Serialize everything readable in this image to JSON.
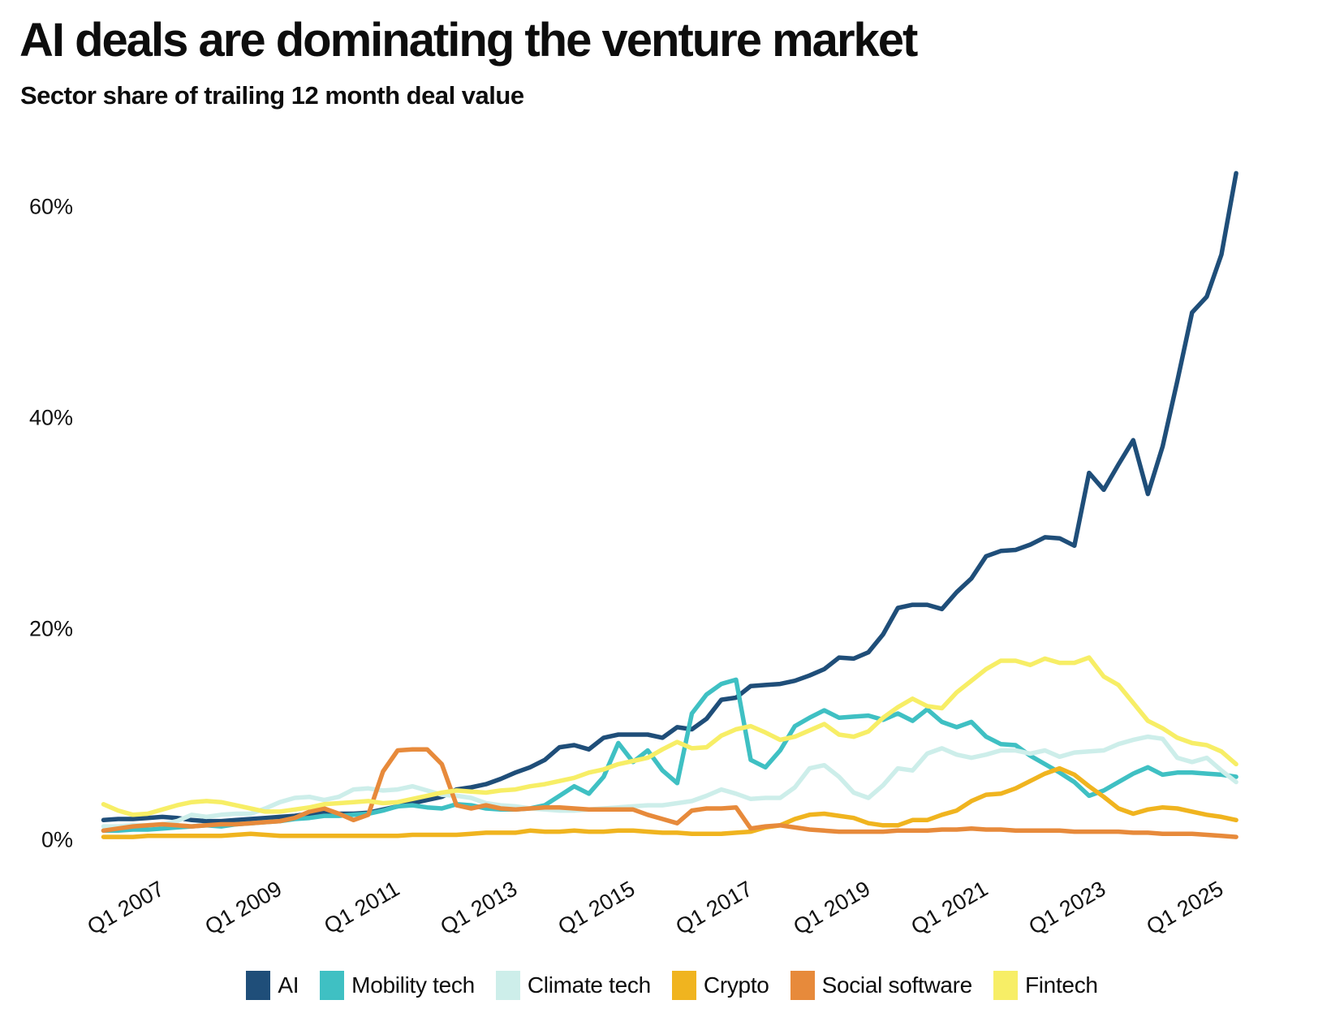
{
  "title": "AI deals are dominating the venture market",
  "subtitle": "Sector share of trailing 12 month deal value",
  "chart_data": {
    "type": "line",
    "title": "AI deals are dominating the venture market",
    "subtitle": "Sector share of trailing 12 month deal value",
    "xlabel": "",
    "ylabel": "",
    "grid": false,
    "background": "#ffffff",
    "legend_position": "bottom",
    "ylim": [
      0,
      65
    ],
    "yticks": [
      {
        "value": 0,
        "label": "0%"
      },
      {
        "value": 20,
        "label": "20%"
      },
      {
        "value": 40,
        "label": "40%"
      },
      {
        "value": 60,
        "label": "60%"
      }
    ],
    "xticks": [
      {
        "year": 2007,
        "label": "Q1 2007"
      },
      {
        "year": 2009,
        "label": "Q1 2009"
      },
      {
        "year": 2011,
        "label": "Q1 2011"
      },
      {
        "year": 2013,
        "label": "Q1 2013"
      },
      {
        "year": 2015,
        "label": "Q1 2015"
      },
      {
        "year": 2017,
        "label": "Q1 2017"
      },
      {
        "year": 2019,
        "label": "Q1 2019"
      },
      {
        "year": 2021,
        "label": "Q1 2021"
      },
      {
        "year": 2023,
        "label": "Q1 2023"
      },
      {
        "year": 2025,
        "label": "Q1 2025"
      }
    ],
    "x_axis": {
      "unit": "decimal_year_quarterly",
      "start": 2006.0,
      "step": 0.25,
      "count": 78
    },
    "series": [
      {
        "name": "AI",
        "color": "#1f4e79",
        "values": [
          1.9,
          2.0,
          2.0,
          2.1,
          2.2,
          2.1,
          1.9,
          1.8,
          1.8,
          1.9,
          2.0,
          2.1,
          2.2,
          2.3,
          2.5,
          2.6,
          2.5,
          2.5,
          2.6,
          2.9,
          3.2,
          3.5,
          3.8,
          4.1,
          4.8,
          5.0,
          5.3,
          5.8,
          6.4,
          6.9,
          7.6,
          8.8,
          9.0,
          8.6,
          9.7,
          10.0,
          10.0,
          10.0,
          9.7,
          10.7,
          10.5,
          11.5,
          13.3,
          13.5,
          14.6,
          14.7,
          14.8,
          15.1,
          15.6,
          16.2,
          17.3,
          17.2,
          17.8,
          19.5,
          22.0,
          22.3,
          22.3,
          21.9,
          23.5,
          24.8,
          26.9,
          27.4,
          27.5,
          28.0,
          28.7,
          28.6,
          27.9,
          34.8,
          33.2,
          35.6,
          37.9,
          32.8,
          37.3,
          43.5,
          50.0,
          51.5,
          55.5,
          63.2
        ]
      },
      {
        "name": "Mobility tech",
        "color": "#3fc0c3",
        "values": [
          0.9,
          0.9,
          1.0,
          1.0,
          1.1,
          1.2,
          1.3,
          1.4,
          1.3,
          1.5,
          1.6,
          1.7,
          1.8,
          2.0,
          2.1,
          2.3,
          2.3,
          2.4,
          2.5,
          2.8,
          3.2,
          3.3,
          3.1,
          3.0,
          3.4,
          3.3,
          3.0,
          2.9,
          2.9,
          3.0,
          3.3,
          4.2,
          5.1,
          4.4,
          6.0,
          9.2,
          7.4,
          8.5,
          6.6,
          5.4,
          12.0,
          13.8,
          14.8,
          15.2,
          7.6,
          6.9,
          8.5,
          10.8,
          11.6,
          12.3,
          11.6,
          11.7,
          11.8,
          11.4,
          12.0,
          11.3,
          12.4,
          11.2,
          10.7,
          11.2,
          9.8,
          9.1,
          9.0,
          8.0,
          7.2,
          6.4,
          5.5,
          4.2,
          4.7,
          5.5,
          6.3,
          6.9,
          6.2,
          6.4,
          6.4,
          6.3,
          6.2,
          6.0
        ]
      },
      {
        "name": "Climate tech",
        "color": "#cdeeea",
        "values": [
          1.3,
          1.3,
          1.4,
          1.4,
          1.5,
          1.8,
          2.4,
          2.2,
          2.4,
          2.5,
          2.5,
          3.0,
          3.6,
          4.0,
          4.1,
          3.8,
          4.1,
          4.8,
          4.9,
          4.7,
          4.8,
          5.1,
          4.7,
          4.3,
          4.2,
          4.0,
          3.5,
          3.3,
          3.2,
          3.0,
          2.9,
          2.8,
          2.8,
          2.9,
          3.0,
          3.1,
          3.2,
          3.3,
          3.3,
          3.5,
          3.7,
          4.2,
          4.8,
          4.4,
          3.9,
          4.0,
          4.0,
          5.0,
          6.8,
          7.1,
          6.0,
          4.5,
          4.0,
          5.2,
          6.8,
          6.6,
          8.2,
          8.7,
          8.1,
          7.8,
          8.1,
          8.5,
          8.5,
          8.2,
          8.5,
          7.9,
          8.3,
          8.4,
          8.5,
          9.1,
          9.5,
          9.8,
          9.6,
          7.8,
          7.4,
          7.8,
          6.6,
          5.5
        ]
      },
      {
        "name": "Crypto",
        "color": "#f0b41f",
        "values": [
          0.3,
          0.3,
          0.3,
          0.4,
          0.4,
          0.4,
          0.4,
          0.4,
          0.4,
          0.5,
          0.6,
          0.5,
          0.4,
          0.4,
          0.4,
          0.4,
          0.4,
          0.4,
          0.4,
          0.4,
          0.4,
          0.5,
          0.5,
          0.5,
          0.5,
          0.6,
          0.7,
          0.7,
          0.7,
          0.9,
          0.8,
          0.8,
          0.9,
          0.8,
          0.8,
          0.9,
          0.9,
          0.8,
          0.7,
          0.7,
          0.6,
          0.6,
          0.6,
          0.7,
          0.8,
          1.2,
          1.4,
          2.0,
          2.4,
          2.5,
          2.3,
          2.1,
          1.6,
          1.4,
          1.4,
          1.9,
          1.9,
          2.4,
          2.8,
          3.7,
          4.3,
          4.4,
          4.9,
          5.6,
          6.3,
          6.8,
          6.2,
          5.1,
          4.1,
          3.0,
          2.5,
          2.9,
          3.1,
          3.0,
          2.7,
          2.4,
          2.2,
          1.9
        ]
      },
      {
        "name": "Social software",
        "color": "#e78a3b",
        "values": [
          0.9,
          1.1,
          1.3,
          1.4,
          1.5,
          1.4,
          1.3,
          1.4,
          1.5,
          1.5,
          1.6,
          1.7,
          1.8,
          2.1,
          2.7,
          3.0,
          2.5,
          1.9,
          2.4,
          6.5,
          8.5,
          8.6,
          8.6,
          7.2,
          3.3,
          3.0,
          3.3,
          3.0,
          2.9,
          3.0,
          3.1,
          3.1,
          3.0,
          2.9,
          2.9,
          2.9,
          2.9,
          2.4,
          2.0,
          1.6,
          2.8,
          3.0,
          3.0,
          3.1,
          1.1,
          1.3,
          1.4,
          1.2,
          1.0,
          0.9,
          0.8,
          0.8,
          0.8,
          0.8,
          0.9,
          0.9,
          0.9,
          1.0,
          1.0,
          1.1,
          1.0,
          1.0,
          0.9,
          0.9,
          0.9,
          0.9,
          0.8,
          0.8,
          0.8,
          0.8,
          0.7,
          0.7,
          0.6,
          0.6,
          0.6,
          0.5,
          0.4,
          0.3
        ]
      },
      {
        "name": "Fintech",
        "color": "#f7ee66",
        "values": [
          3.4,
          2.8,
          2.4,
          2.5,
          2.9,
          3.3,
          3.6,
          3.7,
          3.6,
          3.3,
          3.0,
          2.7,
          2.7,
          2.9,
          3.1,
          3.4,
          3.5,
          3.6,
          3.7,
          3.5,
          3.6,
          3.9,
          4.2,
          4.5,
          4.7,
          4.6,
          4.5,
          4.7,
          4.8,
          5.1,
          5.3,
          5.6,
          5.9,
          6.4,
          6.7,
          7.2,
          7.5,
          7.8,
          8.6,
          9.3,
          8.7,
          8.8,
          9.9,
          10.5,
          10.8,
          10.2,
          9.5,
          9.8,
          10.4,
          11.0,
          10.0,
          9.8,
          10.3,
          11.6,
          12.6,
          13.4,
          12.7,
          12.5,
          14.0,
          15.1,
          16.2,
          17.0,
          17.0,
          16.6,
          17.2,
          16.8,
          16.8,
          17.3,
          15.5,
          14.7,
          13.0,
          11.3,
          10.6,
          9.7,
          9.2,
          9.0,
          8.4,
          7.2
        ]
      }
    ]
  }
}
